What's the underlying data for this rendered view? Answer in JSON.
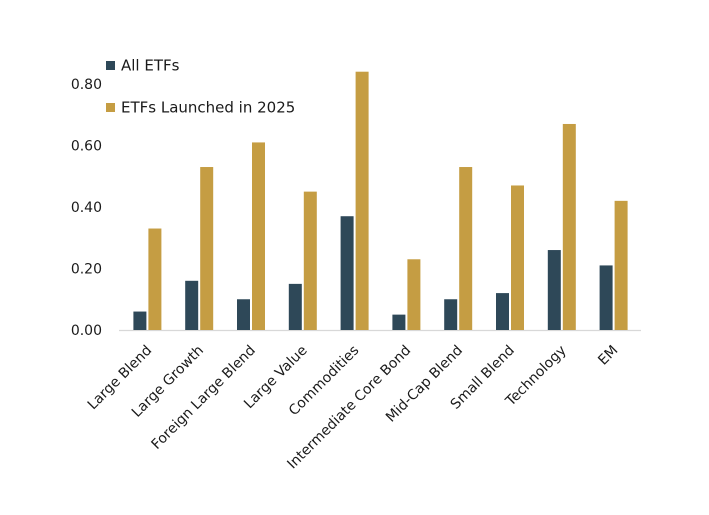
{
  "chart_data": {
    "type": "bar",
    "title": "",
    "xlabel": "",
    "ylabel": "",
    "categories": [
      "Large Blend",
      "Large Growth",
      "Foreign Large Blend",
      "Large Value",
      "Commodities",
      "Intermediate Core Bond",
      "Mid-Cap Blend",
      "Small Blend",
      "Technology",
      "EM"
    ],
    "series": [
      {
        "name": "All ETFs",
        "color": "#2E4858",
        "values": [
          0.06,
          0.16,
          0.1,
          0.15,
          0.37,
          0.05,
          0.1,
          0.12,
          0.26,
          0.21
        ]
      },
      {
        "name": "ETFs Launched in 2025",
        "color": "#C59D43",
        "values": [
          0.33,
          0.53,
          0.61,
          0.45,
          0.84,
          0.23,
          0.53,
          0.47,
          0.67,
          0.42
        ]
      }
    ],
    "yticks": [
      "0.00",
      "0.20",
      "0.40",
      "0.60",
      "0.80"
    ],
    "ylim": [
      0,
      0.88
    ],
    "grid": false,
    "legend_position": "upper-left",
    "x_label_rotation_deg": 45,
    "axis_line_color": "#D8D8D8",
    "text_color": "#1a1a1a",
    "background_color": "#ffffff"
  }
}
